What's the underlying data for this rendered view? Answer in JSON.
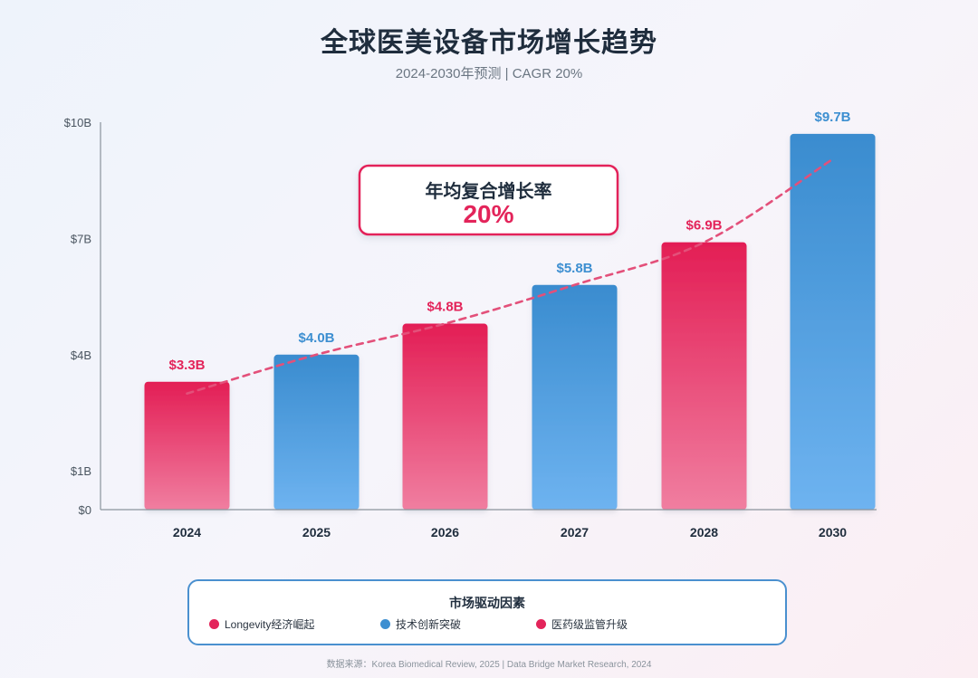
{
  "header": {
    "title": "全球医美设备市场增长趋势",
    "subtitle": "2024-2030年预测 | CAGR 20%"
  },
  "colors": {
    "pink": "#e3245a",
    "blue": "#3d8fd1",
    "trend": "#e3507a",
    "axis": "#8a939c",
    "text_dark": "#1f2d3d"
  },
  "chart_data": {
    "type": "bar",
    "categories": [
      "2024",
      "2025",
      "2026",
      "2027",
      "2028",
      "2030"
    ],
    "values": [
      3.3,
      4.0,
      4.8,
      5.8,
      6.9,
      9.7
    ],
    "value_labels": [
      "$3.3B",
      "$4.0B",
      "$4.8B",
      "$5.8B",
      "$6.9B",
      "$9.7B"
    ],
    "bar_colors": [
      "pink",
      "blue",
      "pink",
      "blue",
      "pink",
      "blue"
    ],
    "y_ticks": [
      {
        "value": 0,
        "label": "$0"
      },
      {
        "value": 1,
        "label": "$1B"
      },
      {
        "value": 4,
        "label": "$4B"
      },
      {
        "value": 7,
        "label": "$7B"
      },
      {
        "value": 10,
        "label": "$10B"
      }
    ],
    "trend_line": true,
    "annotation": {
      "label": "年均复合增长率",
      "value": "20%"
    }
  },
  "legend": {
    "title": "市场驱动因素",
    "items": [
      {
        "label": "Longevity经济崛起",
        "color": "#e3245a"
      },
      {
        "label": "技术创新突破",
        "color": "#3d8fd1"
      },
      {
        "label": "医药级监管升级",
        "color": "#e3245a"
      }
    ]
  },
  "footer": {
    "source": "数据来源：Korea Biomedical Review, 2025 | Data Bridge Market Research, 2024"
  }
}
